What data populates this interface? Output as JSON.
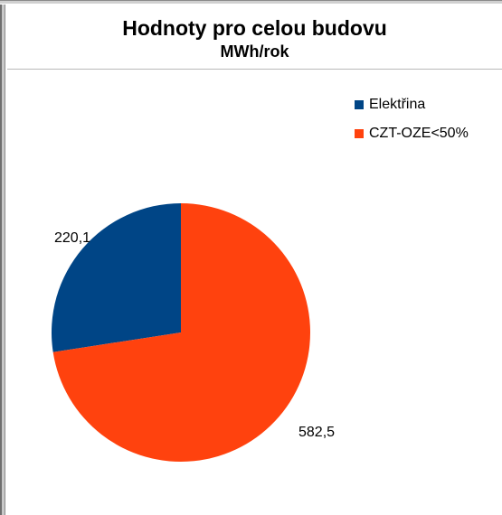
{
  "chart_data": {
    "type": "pie",
    "title": "Hodnoty pro celou budovu",
    "subtitle": "MWh/rok",
    "series": [
      {
        "name": "Elektřina",
        "value": 220.1,
        "label": "220,1",
        "color": "#004586"
      },
      {
        "name": "CZT-OZE<50%",
        "value": 582.5,
        "label": "582,5",
        "color": "#ff420e"
      }
    ],
    "legend": "top-right",
    "start_angle_deg": 0,
    "direction": "counterclockwise"
  }
}
